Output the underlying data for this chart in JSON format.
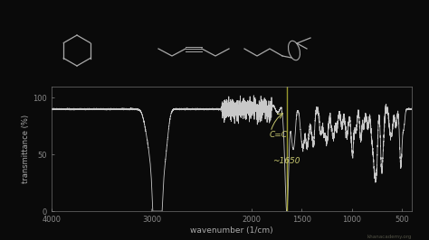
{
  "background_color": "#0a0a0a",
  "plot_bg_color": "#0a0a0a",
  "line_color": "#c8c8c8",
  "axis_color": "#888888",
  "text_color": "#aaaaaa",
  "annotation_color": "#c8c870",
  "vline_color": "#aaaa33",
  "vline_x": 1650,
  "xlabel": "wavenumber (1/cm)",
  "ylabel": "transmittance (%)",
  "xlim": [
    4000,
    400
  ],
  "ylim": [
    0,
    110
  ],
  "yticks": [
    0,
    50,
    100
  ],
  "xticks": [
    4000,
    3000,
    2000,
    1500,
    1000,
    500
  ],
  "annotation_cc": "C=C",
  "annotation_1650": "~1650",
  "watermark": "khanacademy.org"
}
